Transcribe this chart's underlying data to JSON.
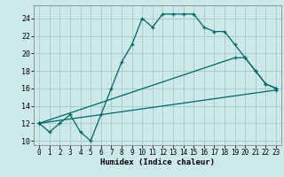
{
  "xlabel": "Humidex (Indice chaleur)",
  "bg_color": "#cce8e8",
  "grid_color": "#aacccc",
  "line_color": "#006666",
  "xlim": [
    -0.5,
    23.5
  ],
  "ylim": [
    9.5,
    25.5
  ],
  "xticks": [
    0,
    1,
    2,
    3,
    4,
    5,
    6,
    7,
    8,
    9,
    10,
    11,
    12,
    13,
    14,
    15,
    16,
    17,
    18,
    19,
    20,
    21,
    22,
    23
  ],
  "yticks": [
    10,
    12,
    14,
    16,
    18,
    20,
    22,
    24
  ],
  "line1_x": [
    0,
    1,
    2,
    3,
    4,
    5,
    6,
    7,
    8,
    9,
    10,
    11,
    12,
    13,
    14,
    15,
    16,
    17,
    18,
    19,
    20,
    21,
    22,
    23
  ],
  "line1_y": [
    12,
    11,
    12,
    13,
    11,
    10,
    13,
    16,
    19,
    21,
    24,
    23,
    24.5,
    24.5,
    24.5,
    24.5,
    23,
    22.5,
    22.5,
    21,
    19.5,
    18,
    16.5,
    16
  ],
  "line2_x": [
    0,
    19,
    20,
    21,
    22,
    23
  ],
  "line2_y": [
    12,
    19.5,
    19.5,
    18,
    16.5,
    16
  ],
  "line3_x": [
    0,
    23
  ],
  "line3_y": [
    12,
    15.8
  ]
}
